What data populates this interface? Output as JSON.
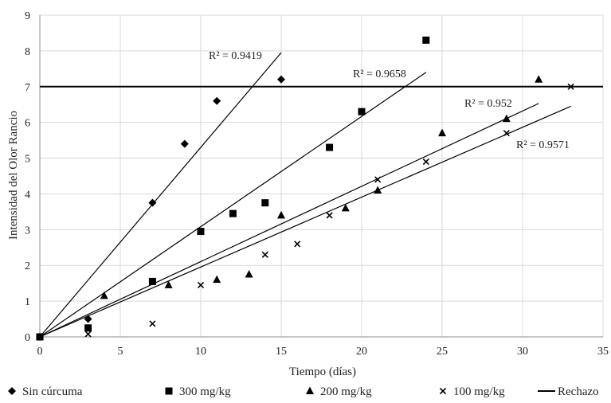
{
  "chart_data": {
    "type": "scatter",
    "xlabel": "Tiempo (días)",
    "ylabel": "Intensidad del Olor Rancio",
    "xlim": [
      0,
      35
    ],
    "ylim": [
      0,
      9
    ],
    "xticks": [
      0,
      5,
      10,
      15,
      20,
      25,
      30,
      35
    ],
    "yticks": [
      0,
      1,
      2,
      3,
      4,
      5,
      6,
      7,
      8,
      9
    ],
    "grid": true,
    "legend_position": "bottom",
    "series": [
      {
        "name": "Sin cúrcuma",
        "marker": "diamond",
        "points": [
          [
            0,
            0
          ],
          [
            3,
            0.5
          ],
          [
            7,
            3.75
          ],
          [
            9,
            5.4
          ],
          [
            11,
            6.6
          ],
          [
            15,
            7.2
          ]
        ],
        "trendline": [
          [
            0,
            0
          ],
          [
            15,
            7.95
          ]
        ],
        "r2": "R² = 0.9419"
      },
      {
        "name": "300 mg/kg",
        "marker": "square",
        "points": [
          [
            0,
            0
          ],
          [
            3,
            0.25
          ],
          [
            7,
            1.55
          ],
          [
            10,
            2.95
          ],
          [
            12,
            3.45
          ],
          [
            14,
            3.75
          ],
          [
            18,
            5.3
          ],
          [
            20,
            6.3
          ],
          [
            24,
            8.3
          ]
        ],
        "trendline": [
          [
            0,
            0
          ],
          [
            24,
            7.4
          ]
        ],
        "r2": "R² = 0.9658"
      },
      {
        "name": "200 mg/kg",
        "marker": "triangle",
        "points": [
          [
            0,
            0
          ],
          [
            4,
            1.15
          ],
          [
            8,
            1.45
          ],
          [
            11,
            1.6
          ],
          [
            13,
            1.75
          ],
          [
            15,
            3.4
          ],
          [
            19,
            3.6
          ],
          [
            21,
            4.1
          ],
          [
            25,
            5.7
          ],
          [
            29,
            6.1
          ],
          [
            31,
            7.2
          ]
        ],
        "trendline": [
          [
            0,
            0
          ],
          [
            31,
            6.53
          ]
        ],
        "r2": "R² = 0.952"
      },
      {
        "name": "100 mg/kg",
        "marker": "x",
        "points": [
          [
            0,
            0
          ],
          [
            3,
            0.08
          ],
          [
            7,
            0.37
          ],
          [
            10,
            1.45
          ],
          [
            14,
            2.3
          ],
          [
            16,
            2.6
          ],
          [
            18,
            3.4
          ],
          [
            21,
            4.4
          ],
          [
            24,
            4.9
          ],
          [
            29,
            5.7
          ],
          [
            33,
            7.0
          ]
        ],
        "trendline": [
          [
            0,
            0
          ],
          [
            33,
            6.45
          ]
        ],
        "r2": "R² = 0.9571"
      },
      {
        "name": "Rechazo",
        "marker": "line",
        "constant": 7
      }
    ]
  }
}
